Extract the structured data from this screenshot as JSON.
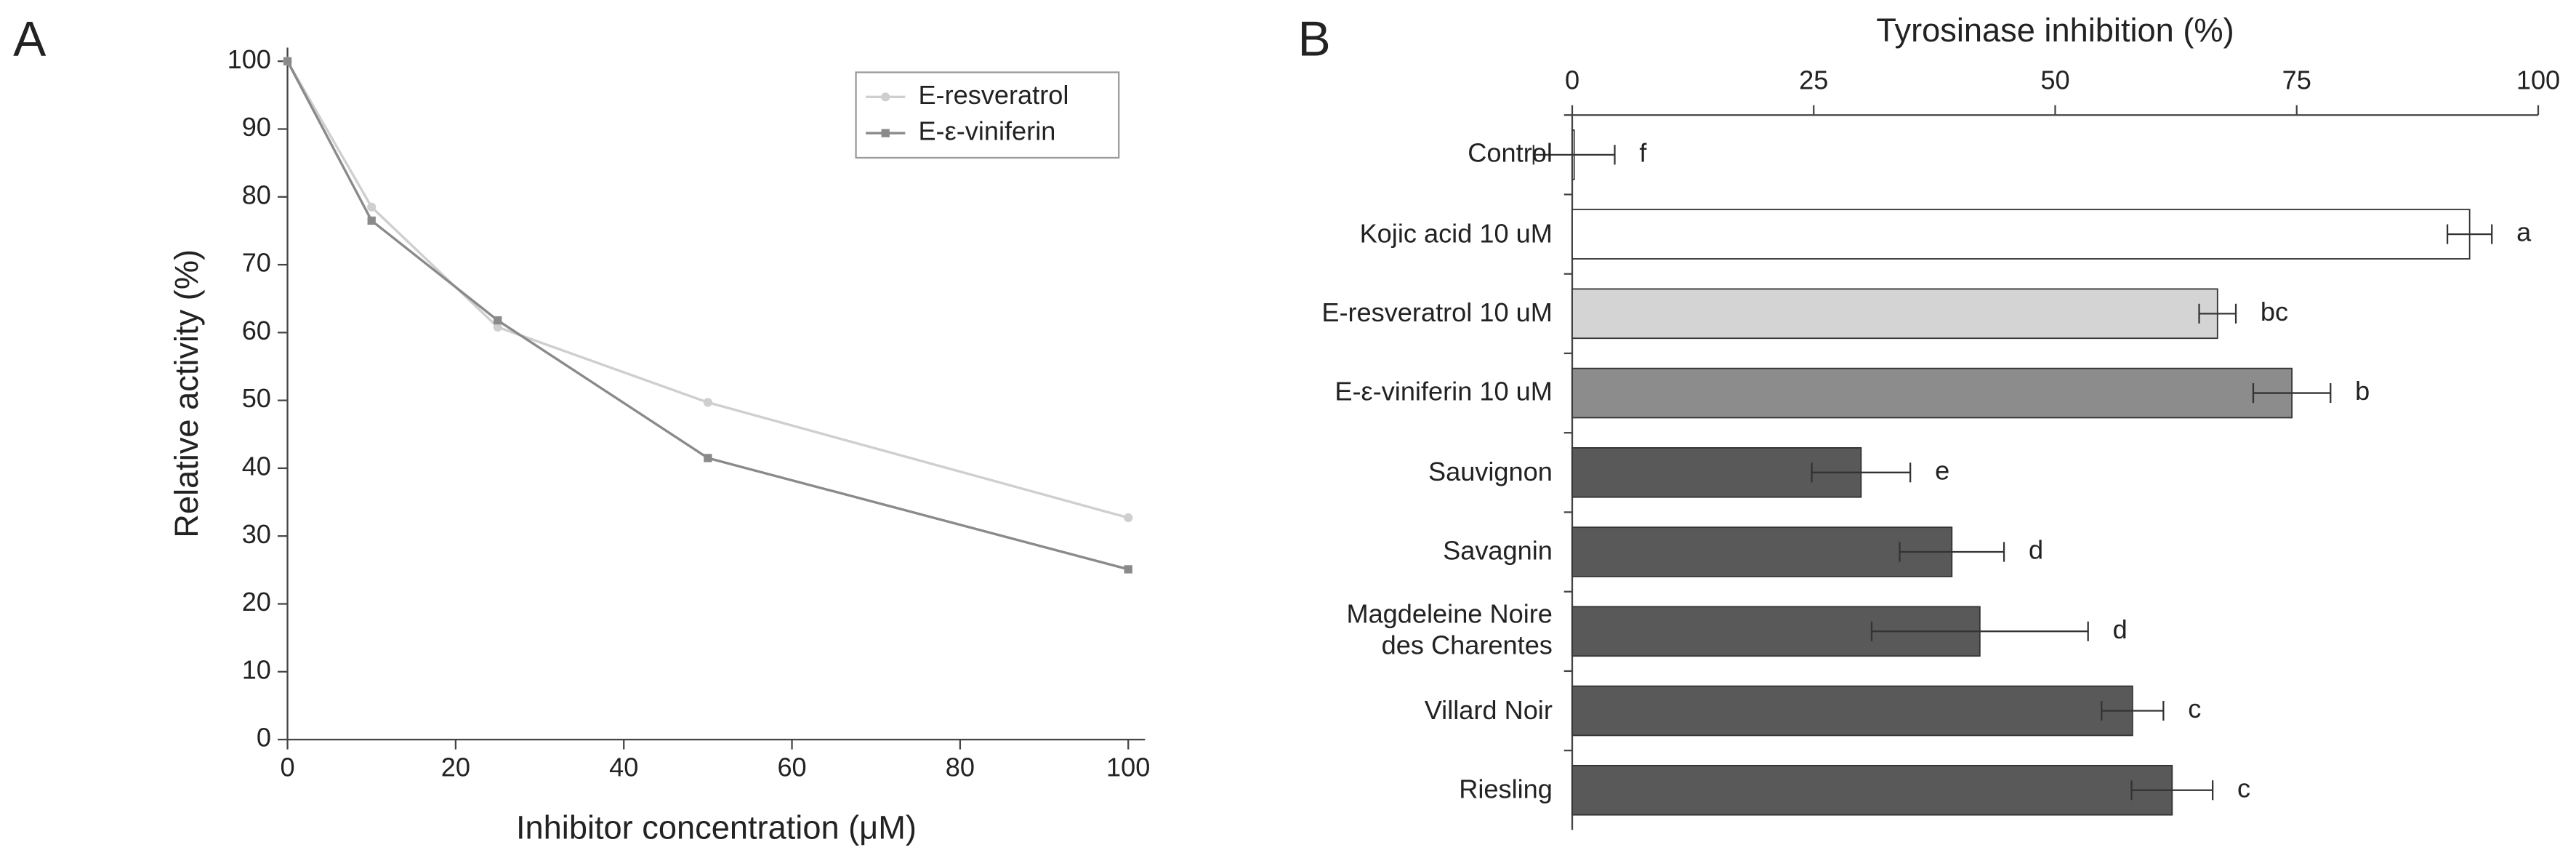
{
  "chart_data": [
    {
      "type": "line",
      "panel_label": "A",
      "xlabel": "Inhibitor concentration (μM)",
      "ylabel": "Relative activity (%)",
      "x": [
        0,
        10,
        25,
        50,
        100
      ],
      "series": [
        {
          "name": "E-resveratrol",
          "color": "#cfcfcf",
          "marker": "circle",
          "values": [
            100,
            78.5,
            60.8,
            49.7,
            32.7
          ]
        },
        {
          "name": "E-ε-viniferin",
          "color": "#8a8a8a",
          "marker": "square",
          "values": [
            100,
            76.5,
            61.8,
            41.5,
            25.1
          ]
        }
      ],
      "xlim": [
        0,
        102
      ],
      "ylim": [
        0,
        102
      ],
      "xticks": [
        0,
        20,
        40,
        60,
        80,
        100
      ],
      "yticks": [
        0,
        10,
        20,
        30,
        40,
        50,
        60,
        70,
        80,
        90,
        100
      ],
      "legend": "upper right"
    },
    {
      "type": "hbar",
      "panel_label": "B",
      "xlabel": "Tyrosinase inhibition (%)",
      "categories": [
        "Control",
        "Kojic acid 10 uM",
        "E-resveratrol 10 uM",
        "E-ε-viniferin 10 uM",
        "Sauvignon",
        "Savagnin",
        "Magdeleine Noire\ndes Charentes",
        "Villard Noir",
        "Riesling"
      ],
      "values": [
        0.2,
        92.9,
        66.8,
        74.5,
        29.9,
        39.3,
        42.2,
        58.0,
        62.1
      ],
      "errors": [
        4.2,
        2.3,
        1.9,
        4.0,
        5.1,
        5.4,
        11.2,
        3.2,
        4.2
      ],
      "annotations": [
        "f",
        "a",
        "bc",
        "b",
        "e",
        "d",
        "d",
        "c",
        "c"
      ],
      "colors": [
        "#ffffff",
        "#ffffff",
        "#d4d4d4",
        "#8c8c8c",
        "#595959",
        "#595959",
        "#595959",
        "#595959",
        "#595959"
      ],
      "xlim": [
        0,
        100
      ],
      "xticks": [
        0,
        25,
        50,
        75,
        100
      ],
      "xaxis_position": "top"
    }
  ]
}
